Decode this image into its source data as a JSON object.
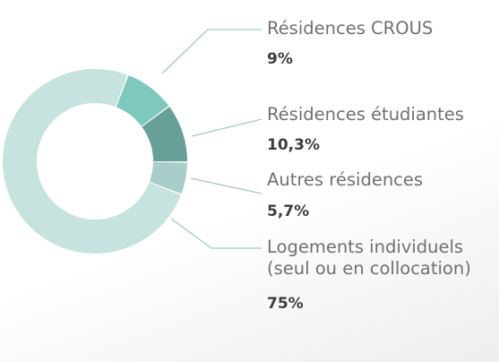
{
  "chart_data": {
    "type": "pie",
    "style": "donut",
    "slices": [
      {
        "label": "Résidences CROUS",
        "value_text": "9%",
        "value": 9,
        "color": "#7ec8bd"
      },
      {
        "label": "Résidences étudiantes",
        "value_text": "10,3%",
        "value": 10.3,
        "color": "#67a096"
      },
      {
        "label": "Autres résidences",
        "value_text": "5,7%",
        "value": 5.7,
        "color": "#a9cdc8"
      },
      {
        "label": "Logements individuels\n(seul ou en collocation)",
        "value_text": "75%",
        "value": 75,
        "color": "#c7e3df"
      }
    ],
    "leader_color": "#a6c9c3",
    "legend": "right"
  }
}
